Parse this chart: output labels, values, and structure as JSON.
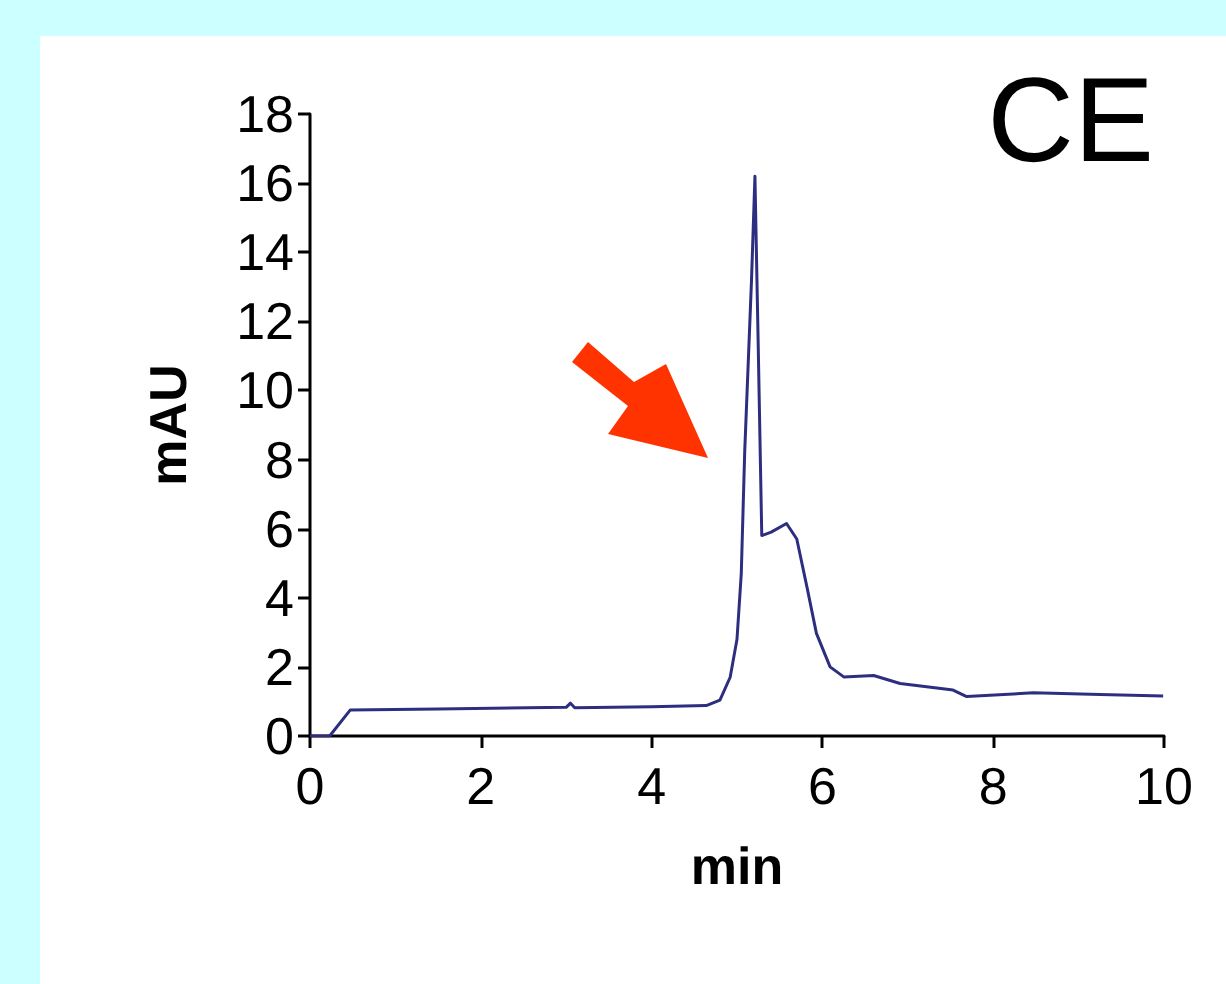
{
  "chart_data": {
    "type": "line",
    "xlabel": "min",
    "ylabel": "mAU",
    "annotations": [
      "CE"
    ],
    "x": [
      0,
      0.23,
      0.47,
      1.5,
      3.0,
      3.05,
      3.1,
      4.0,
      4.64,
      4.8,
      4.92,
      5.0,
      5.05,
      5.09,
      5.17,
      5.21,
      5.25,
      5.29,
      5.4,
      5.58,
      5.7,
      5.82,
      5.93,
      6.09,
      6.25,
      6.6,
      6.91,
      7.53,
      7.69,
      8.47,
      9.25,
      9.99
    ],
    "series": [
      {
        "color": "#2e2e80",
        "values": [
          0,
          0,
          0.75,
          0.78,
          0.83,
          0.95,
          0.82,
          0.85,
          0.88,
          1.04,
          1.7,
          2.8,
          4.7,
          8.2,
          13.2,
          16.2,
          11.1,
          5.8,
          5.9,
          6.15,
          5.7,
          4.3,
          2.97,
          2.0,
          1.71,
          1.75,
          1.52,
          1.33,
          1.14,
          1.25,
          1.2,
          1.16
        ]
      }
    ],
    "xlim": [
      0,
      10
    ],
    "xticks": [
      0,
      2,
      4,
      6,
      8,
      10
    ],
    "ylim": [
      0,
      18
    ],
    "yticks": [
      0,
      2,
      4,
      6,
      8,
      10,
      12,
      14,
      16,
      18
    ],
    "grid": false,
    "marker": "none",
    "line_style": "solid"
  }
}
